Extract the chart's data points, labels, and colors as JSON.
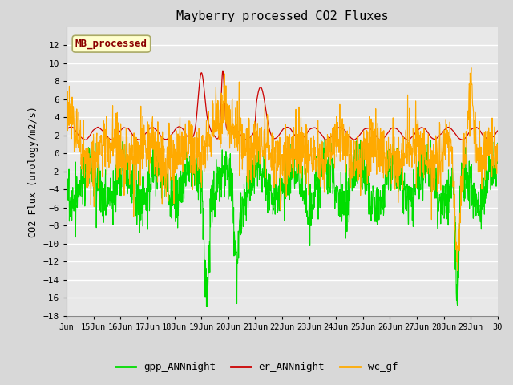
{
  "title": "Mayberry processed CO2 Fluxes",
  "ylabel": "CO2 Flux (urology/m2/s)",
  "ylim": [
    -18,
    14
  ],
  "yticks": [
    -18,
    -16,
    -14,
    -12,
    -10,
    -8,
    -6,
    -4,
    -2,
    0,
    2,
    4,
    6,
    8,
    10,
    12
  ],
  "xlim": [
    14,
    30
  ],
  "xtick_positions": [
    14,
    15,
    16,
    17,
    18,
    19,
    20,
    21,
    22,
    23,
    24,
    25,
    26,
    27,
    28,
    29,
    30
  ],
  "xtick_labels": [
    "Jun",
    "15Jun",
    "16Jun",
    "17Jun",
    "18Jun",
    "19Jun",
    "20Jun",
    "21Jun",
    "22Jun",
    "23Jun",
    "24Jun",
    "25Jun",
    "26Jun",
    "27Jun",
    "28Jun",
    "29Jun",
    "30"
  ],
  "legend_labels": [
    "gpp_ANNnight",
    "er_ANNnight",
    "wc_gf"
  ],
  "legend_colors": [
    "#00dd00",
    "#cc0000",
    "#ffaa00"
  ],
  "annotation_text": "MB_processed",
  "annotation_color": "#8b0000",
  "annotation_bg": "#ffffcc",
  "annotation_edge": "#aaaa66",
  "fig_bg": "#d8d8d8",
  "plot_bg": "#e8e8e8",
  "grid_color": "#ffffff",
  "n_points": 1500,
  "seed": 12345
}
